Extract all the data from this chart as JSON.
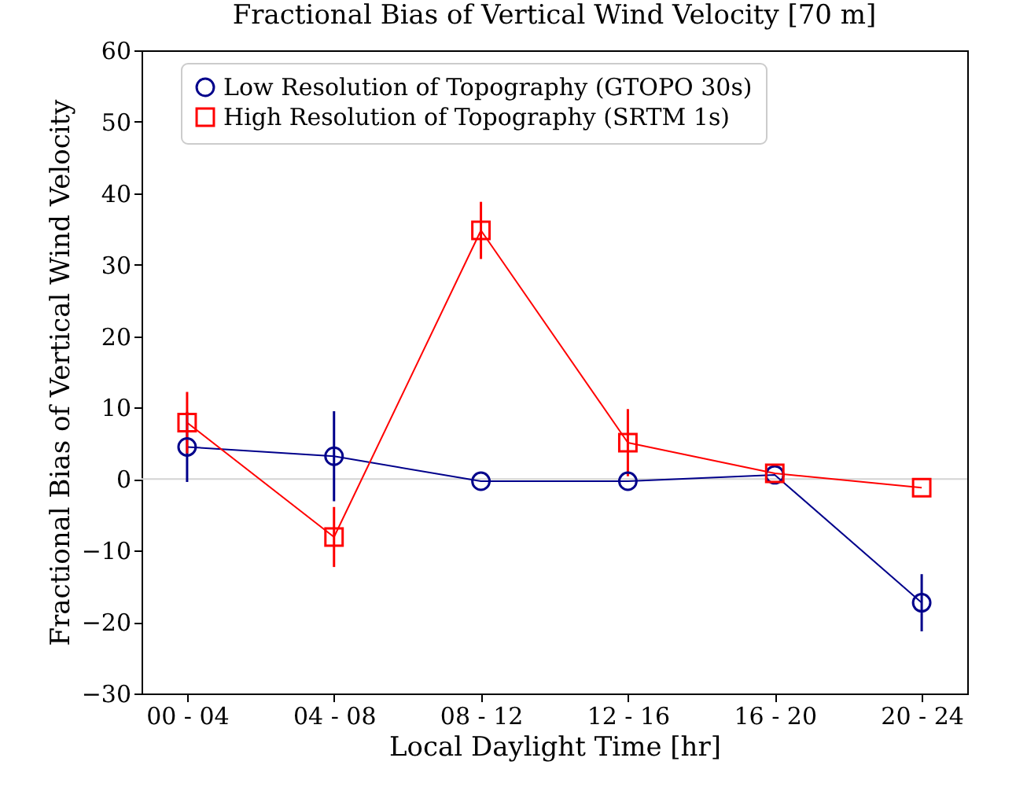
{
  "chart_data": {
    "type": "line",
    "title": "Fractional Bias of Vertical Wind Velocity [70 m]",
    "xlabel": "Local Daylight Time [hr]",
    "ylabel": "Fractional Bias of Vertical Wind Velocity",
    "categories": [
      "00 - 04",
      "04 - 08",
      "08 - 12",
      "12 - 16",
      "16 - 20",
      "20 - 24"
    ],
    "series": [
      {
        "name": "Low Resolution of Topography (GTOPO 30s)",
        "color": "#00008b",
        "marker": "circle",
        "values": [
          4.5,
          3.2,
          -0.3,
          -0.3,
          0.6,
          -17.3
        ],
        "errors": [
          4.9,
          6.3,
          null,
          null,
          null,
          4
        ]
      },
      {
        "name": "High Resolution of Topography (SRTM 1s)",
        "color": "#ff0000",
        "marker": "square",
        "values": [
          7.9,
          -8.1,
          34.8,
          5.1,
          0.8,
          -1.2
        ],
        "errors": [
          4.3,
          4.2,
          4,
          4.7,
          null,
          null
        ]
      }
    ],
    "ylim": [
      -30,
      60
    ],
    "yticks": [
      -30,
      -20,
      -10,
      0,
      10,
      20,
      30,
      40,
      50,
      60
    ],
    "ref_lines": [
      {
        "axis": "y",
        "value": 0,
        "color": "#d3d3d3"
      }
    ],
    "grid": false,
    "legend": "top left",
    "line_style": "solid"
  }
}
